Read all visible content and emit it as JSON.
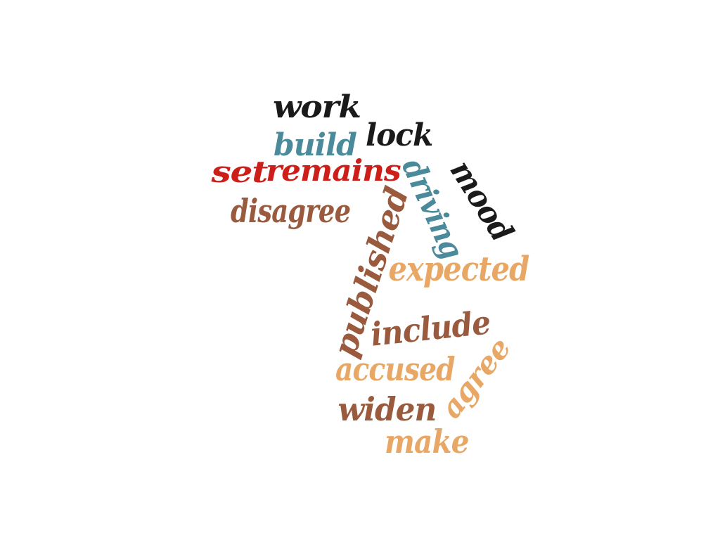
{
  "words": [
    {
      "text": "work",
      "color": "#1a1a1a"
    },
    {
      "text": "lock",
      "color": "#1a1a1a"
    },
    {
      "text": "build",
      "color": "#4a8a9a"
    },
    {
      "text": "set",
      "color": "#cc1f1a"
    },
    {
      "text": "remains",
      "color": "#cc1f1a"
    },
    {
      "text": "driving",
      "color": "#4a8a9a"
    },
    {
      "text": "mood",
      "color": "#1a1a1a"
    },
    {
      "text": "disagree",
      "color": "#9a5a3e"
    },
    {
      "text": "published",
      "color": "#9a5a3e"
    },
    {
      "text": "expected",
      "color": "#e8a765"
    },
    {
      "text": "include",
      "color": "#9a5a3e"
    },
    {
      "text": "accused",
      "color": "#e8a765"
    },
    {
      "text": "agree",
      "color": "#e8a765"
    },
    {
      "text": "widen",
      "color": "#9a5a3e"
    },
    {
      "text": "make",
      "color": "#e8a765"
    }
  ]
}
